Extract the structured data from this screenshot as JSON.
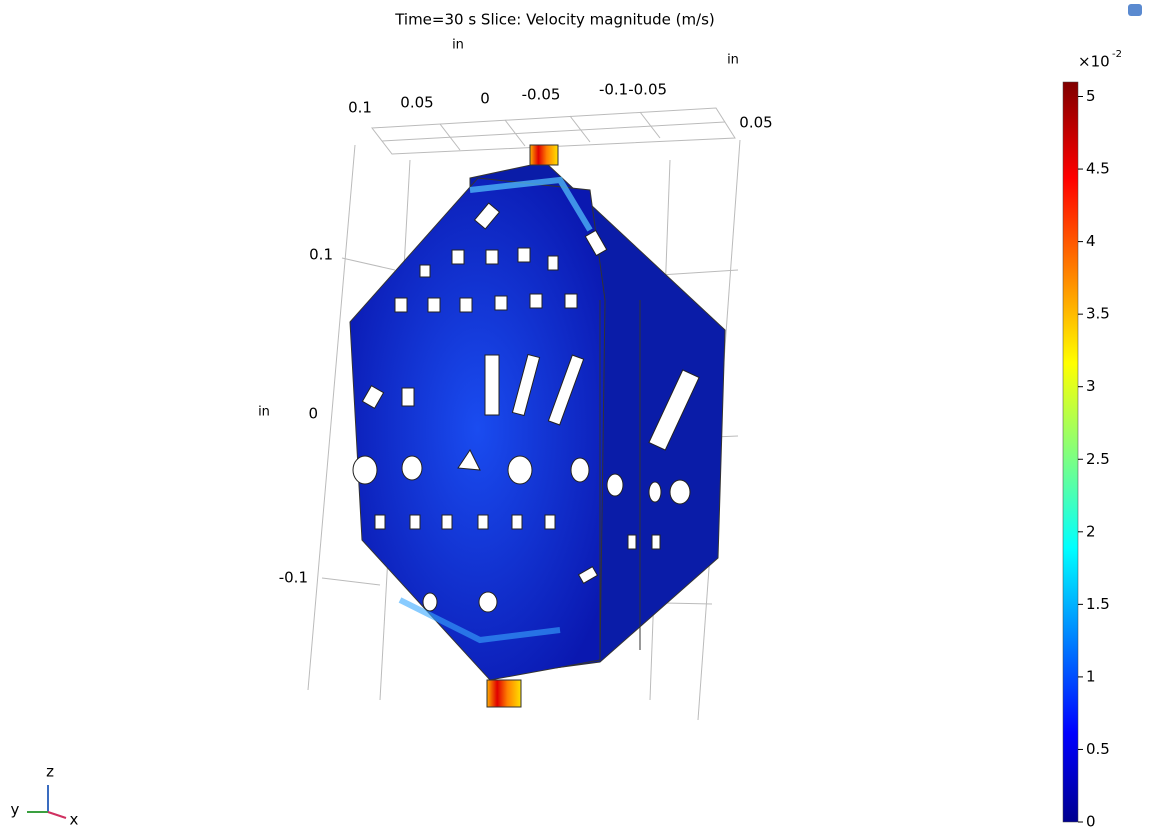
{
  "title": "Time=30 s   Slice: Velocity magnitude (m/s)",
  "axes": {
    "unit_labels": [
      "in",
      "in",
      "in"
    ],
    "top_ticks": [
      "0.1",
      "0.05",
      "0",
      "-0.05",
      "-0.1-0.05"
    ],
    "right_tick": "0.05",
    "z_ticks": [
      "0.1",
      "0",
      "-0.1"
    ]
  },
  "triad": {
    "z": "z",
    "y": "y",
    "x": "x"
  },
  "colorbar": {
    "multiplier": "×10",
    "exponent": "-2",
    "lim": [
      0,
      5.1
    ],
    "ticks": [
      0,
      0.5,
      1,
      1.5,
      2,
      2.5,
      3,
      3.5,
      4,
      4.5,
      5
    ]
  }
}
